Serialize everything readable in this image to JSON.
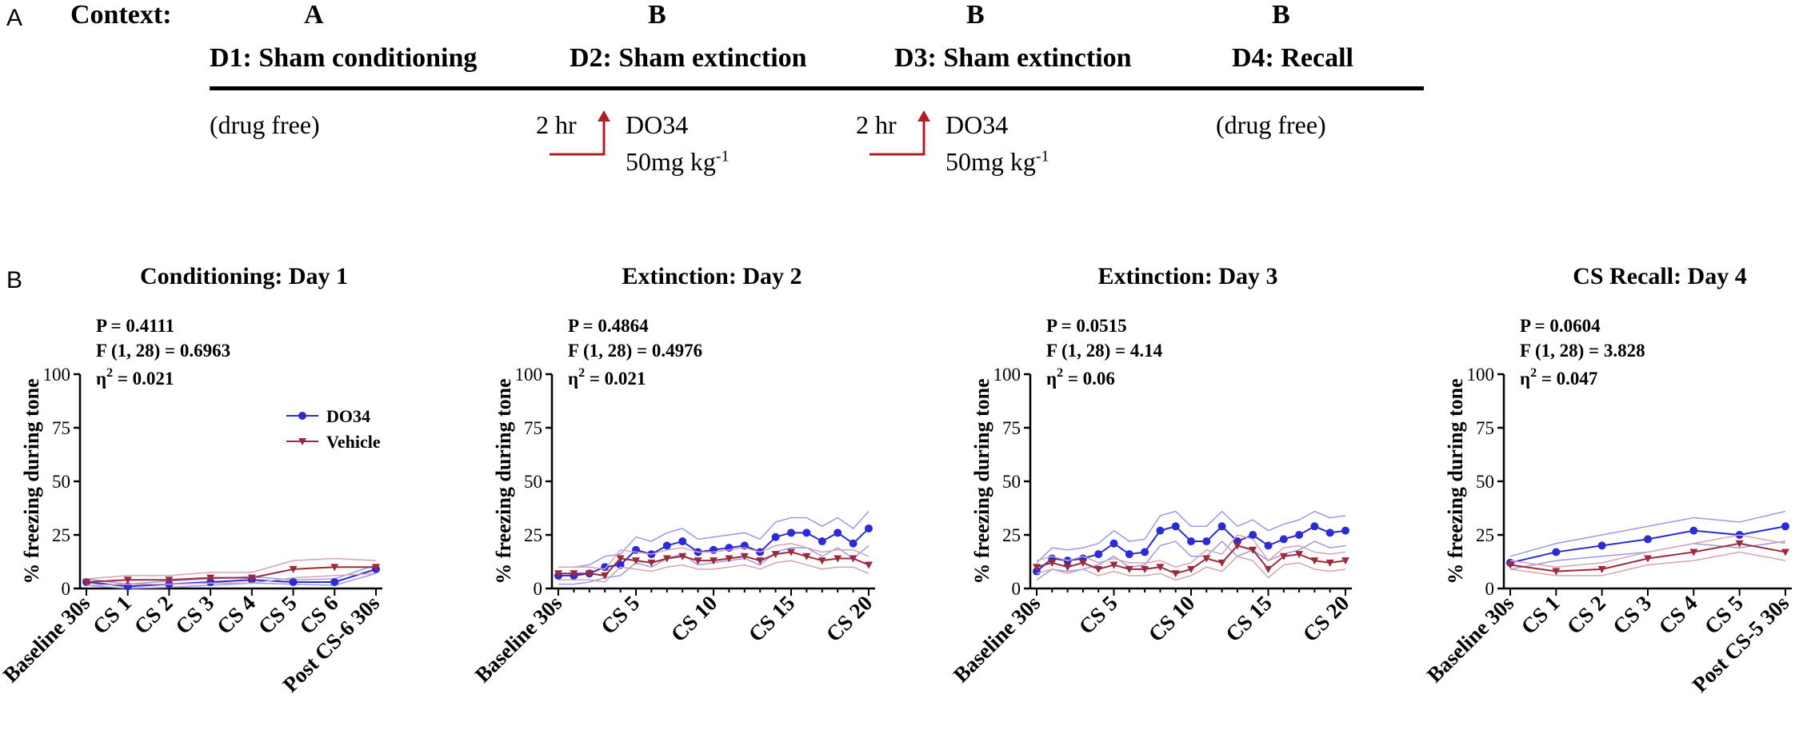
{
  "panelA": {
    "letter": "A",
    "context_label": "Context:",
    "contexts": [
      "A",
      "B",
      "B",
      "B"
    ],
    "days": [
      "D1: Sham conditioning",
      "D2:  Sham extinction",
      "D3: Sham extinction",
      "D4: Recall"
    ],
    "notes": {
      "d1": "(drug free)",
      "d2_time": "2 hr",
      "d2_drug": "DO34",
      "d2_dose": "50mg kg",
      "d3_time": "2 hr",
      "d3_drug": "DO34",
      "d3_dose": "50mg kg",
      "dose_exp": "-1",
      "d4": "(drug free)"
    },
    "arrow_color": "#b01e23"
  },
  "panelB": {
    "letter": "B"
  },
  "colors": {
    "do34": "#2b2bd6",
    "vehicle": "#9b2a3c",
    "do34_band": "#9999ee",
    "vehicle_band": "#d9a3b0"
  },
  "chart_data": [
    {
      "type": "line",
      "title": "Conditioning: Day 1",
      "stats": {
        "p": "P = 0.4111",
        "f": "F (1, 28) = 0.6963",
        "eta_sym": "η",
        "eta_exp": "2",
        "eta_val": " = 0.021"
      },
      "ylabel": "% freezing during tone",
      "ylim": [
        0,
        100
      ],
      "yticks": [
        "0",
        "25",
        "50",
        "75",
        "100"
      ],
      "x_tick_labels": [
        "Baseline 30s",
        "CS 1",
        "CS 2",
        "CS 3",
        "CS 4",
        "CS 5",
        "CS 6",
        "Post CS-6 30s"
      ],
      "x_tick_positions": [
        0,
        1,
        2,
        3,
        4,
        5,
        6,
        7
      ],
      "n_points": 8,
      "legend": [
        "DO34",
        "Vehicle"
      ],
      "series": [
        {
          "name": "DO34",
          "values": [
            3,
            1,
            2,
            3,
            4,
            3,
            3,
            9
          ],
          "band": [
            1.5,
            1,
            1.5,
            1.5,
            1.5,
            1,
            1.5,
            2
          ]
        },
        {
          "name": "Vehicle",
          "values": [
            3,
            4,
            4,
            5,
            5,
            9,
            10,
            10
          ],
          "band": [
            1.5,
            2,
            2,
            2.5,
            2.5,
            4,
            4,
            3
          ]
        }
      ]
    },
    {
      "type": "line",
      "title": "Extinction: Day 2",
      "stats": {
        "p": "P = 0.4864",
        "f": "F (1, 28) = 0.4976",
        "eta_sym": "η",
        "eta_exp": "2",
        "eta_val": " = 0.021"
      },
      "ylabel": "% freezing during tone",
      "ylim": [
        0,
        100
      ],
      "yticks": [
        "0",
        "25",
        "50",
        "75",
        "100"
      ],
      "x_tick_labels": [
        "Baseline 30s",
        "CS 5",
        "CS 10",
        "CS 15",
        "CS 20"
      ],
      "x_tick_positions": [
        0,
        5,
        10,
        15,
        20
      ],
      "n_points": 21,
      "series": [
        {
          "name": "DO34",
          "values": [
            6,
            6,
            7,
            10,
            11,
            18,
            16,
            20,
            22,
            17,
            18,
            19,
            20,
            17,
            24,
            26,
            26,
            22,
            26,
            21,
            28
          ],
          "band": [
            4,
            4,
            4,
            5,
            5,
            6,
            6,
            6,
            6,
            6,
            6,
            6,
            6,
            6,
            7,
            7,
            7,
            7,
            7,
            7,
            8
          ]
        },
        {
          "name": "Vehicle",
          "values": [
            7,
            7,
            7,
            6,
            14,
            13,
            12,
            14,
            15,
            13,
            13,
            14,
            15,
            13,
            16,
            17,
            15,
            13,
            14,
            14,
            11
          ],
          "band": [
            3,
            3,
            3,
            3,
            4,
            4,
            4,
            4,
            4,
            4,
            4,
            4,
            4,
            4,
            4,
            4,
            4,
            4,
            4,
            4,
            4
          ]
        }
      ]
    },
    {
      "type": "line",
      "title": "Extinction: Day 3",
      "stats": {
        "p": "P = 0.0515",
        "f": "F (1, 28) = 4.14",
        "eta_sym": "η",
        "eta_exp": "2",
        "eta_val": " = 0.06"
      },
      "ylabel": "% freezing during tone",
      "ylim": [
        0,
        100
      ],
      "yticks": [
        "0",
        "25",
        "50",
        "75",
        "100"
      ],
      "x_tick_labels": [
        "Baseline 30s",
        "CS 5",
        "CS 10",
        "CS 15",
        "CS 20"
      ],
      "x_tick_positions": [
        0,
        5,
        10,
        15,
        20
      ],
      "n_points": 21,
      "series": [
        {
          "name": "DO34",
          "values": [
            8,
            14,
            13,
            14,
            16,
            21,
            16,
            17,
            27,
            29,
            22,
            22,
            29,
            22,
            25,
            20,
            23,
            25,
            29,
            26,
            27
          ],
          "band": [
            4,
            5,
            5,
            5,
            5,
            6,
            6,
            6,
            7,
            7,
            7,
            7,
            7,
            7,
            7,
            7,
            7,
            7,
            7,
            7,
            7
          ]
        },
        {
          "name": "Vehicle",
          "values": [
            10,
            12,
            10,
            12,
            9,
            11,
            9,
            9,
            10,
            7,
            9,
            14,
            12,
            20,
            18,
            9,
            15,
            16,
            13,
            12,
            13
          ],
          "band": [
            3,
            3,
            3,
            3,
            3,
            3,
            3,
            3,
            3,
            3,
            3,
            4,
            4,
            5,
            5,
            4,
            4,
            4,
            4,
            4,
            4
          ]
        }
      ]
    },
    {
      "type": "line",
      "title": "CS Recall: Day 4",
      "stats": {
        "p": "P = 0.0604",
        "f": "F (1, 28) = 3.828",
        "eta_sym": "η",
        "eta_exp": "2",
        "eta_val": " = 0.047"
      },
      "ylabel": "% freezing during tone",
      "ylim": [
        0,
        100
      ],
      "yticks": [
        "0",
        "25",
        "50",
        "75",
        "100"
      ],
      "x_tick_labels": [
        "Baseline 30s",
        "CS 1",
        "CS 2",
        "CS 3",
        "CS 4",
        "CS 5",
        "Post CS-5 30s"
      ],
      "x_tick_positions": [
        0,
        1,
        2,
        3,
        4,
        5,
        6
      ],
      "n_points": 7,
      "series": [
        {
          "name": "DO34",
          "values": [
            12,
            17,
            20,
            23,
            27,
            25,
            29
          ],
          "band": [
            3,
            4,
            5,
            6,
            6,
            6,
            7
          ]
        },
        {
          "name": "Vehicle",
          "values": [
            11,
            8,
            9,
            14,
            17,
            21,
            17
          ],
          "band": [
            2,
            2,
            3,
            3,
            4,
            4,
            4
          ]
        }
      ]
    }
  ]
}
